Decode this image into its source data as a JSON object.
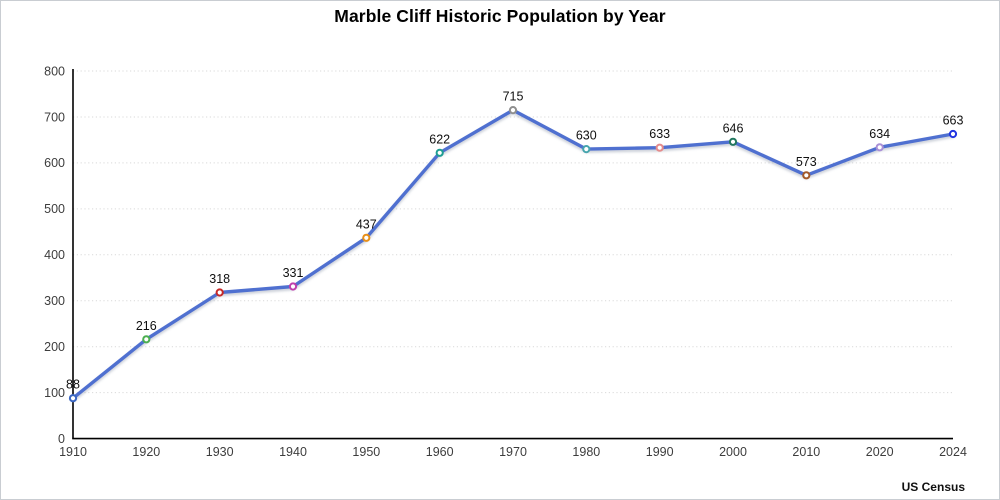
{
  "chart_data": {
    "type": "line",
    "title": "Marble Cliff Historic Population by Year",
    "source": "US Census",
    "categories": [
      "1910",
      "1920",
      "1930",
      "1940",
      "1950",
      "1960",
      "1970",
      "1980",
      "1990",
      "2000",
      "2010",
      "2020",
      "2024"
    ],
    "values": [
      88,
      216,
      318,
      331,
      437,
      622,
      715,
      630,
      633,
      646,
      573,
      634,
      663
    ],
    "point_colors": [
      "#3a66c2",
      "#4caf50",
      "#c62828",
      "#bf3fad",
      "#e8901a",
      "#1f9e93",
      "#8f8f8f",
      "#46a5ad",
      "#e58b8b",
      "#21775f",
      "#a35a2a",
      "#a98fd6",
      "#2135e0"
    ],
    "line_color": "#4f6fd0",
    "grid_color": "#d9d9d9",
    "axis_color": "#000000",
    "ylim": [
      0,
      800
    ],
    "ytick_interval": 100,
    "yticks": [
      "0",
      "100",
      "200",
      "300",
      "400",
      "500",
      "600",
      "700",
      "800"
    ],
    "xlabel": "",
    "ylabel": "",
    "legend": "none",
    "grid": "horizontal dotted",
    "data_labels": true
  }
}
